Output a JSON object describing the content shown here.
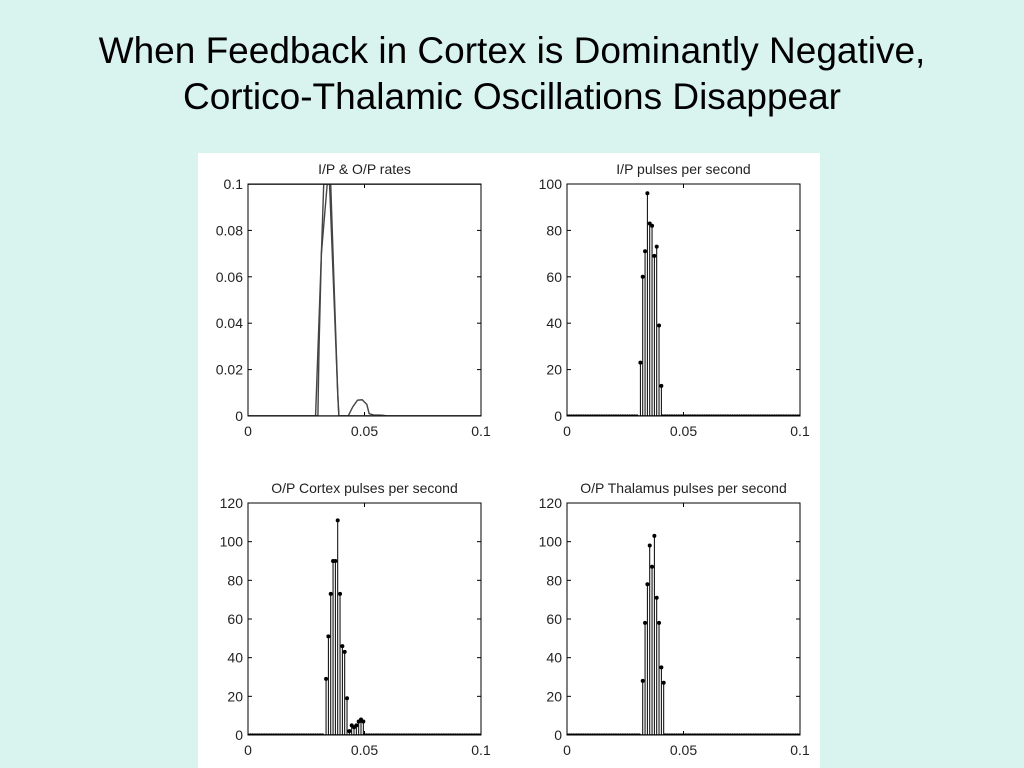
{
  "slide": {
    "title_line1": "When Feedback in Cortex is Dominantly Negative,",
    "title_line2": "Cortico-Thalamic Oscillations Disappear"
  },
  "chart_data": [
    {
      "type": "line",
      "title": "I/P & O/P rates",
      "xlabel": "",
      "ylabel": "",
      "xlim": [
        0,
        0.1
      ],
      "ylim": [
        0,
        0.1
      ],
      "xticks": [
        "0",
        "0.05",
        "0.1"
      ],
      "yticks": [
        "0",
        "0.02",
        "0.04",
        "0.06",
        "0.08",
        "0.1"
      ],
      "series": [
        {
          "x": [
            0.0,
            0.03,
            0.0305,
            0.0315,
            0.0325,
            0.0335,
            0.1
          ],
          "y": [
            0,
            0,
            0.03,
            0.07,
            0.1,
            0.1,
            0.1
          ]
        },
        {
          "x": [
            0.0,
            0.0345,
            0.0355,
            0.0365,
            0.0375,
            0.0385,
            0.039,
            0.1
          ],
          "y": [
            0.1,
            0.1,
            0.1,
            0.07,
            0.04,
            0.01,
            0,
            0
          ]
        },
        {
          "x": [
            0.0,
            0.0335,
            0.035,
            0.0385,
            0.039,
            0.1
          ],
          "y": [
            0.1,
            0.1,
            0.1,
            0.01,
            0,
            0
          ]
        },
        {
          "x": [
            0.0,
            0.029,
            0.0315,
            0.034,
            0.0355,
            0.1
          ],
          "y": [
            0,
            0,
            0.07,
            0.1,
            0.1,
            0.1
          ]
        },
        {
          "x": [
            0,
            0.043,
            0.045,
            0.047,
            0.049,
            0.051,
            0.052,
            0.054,
            0.056,
            0.058,
            0.06,
            0.1
          ],
          "y": [
            0,
            0,
            0.004,
            0.0068,
            0.007,
            0.005,
            0.001,
            0.0004,
            0.0004,
            0.0003,
            0,
            0
          ]
        }
      ]
    },
    {
      "type": "stem",
      "title": "I/P pulses per second",
      "xlabel": "",
      "ylabel": "",
      "xlim": [
        0,
        0.1
      ],
      "ylim": [
        0,
        100
      ],
      "xticks": [
        "0",
        "0.05",
        "0.1"
      ],
      "yticks": [
        "0",
        "20",
        "40",
        "60",
        "80",
        "100"
      ],
      "x": [
        0.0315,
        0.0325,
        0.0335,
        0.0345,
        0.0355,
        0.0365,
        0.0375,
        0.0385,
        0.0395,
        0.0405
      ],
      "values": [
        23,
        60,
        71,
        96,
        83,
        82,
        69,
        73,
        39,
        13
      ]
    },
    {
      "type": "stem",
      "title": "O/P Cortex pulses per second",
      "xlabel": "",
      "ylabel": "",
      "xlim": [
        0,
        0.1
      ],
      "ylim": [
        0,
        120
      ],
      "xticks": [
        "0",
        "0.05",
        "0.1"
      ],
      "yticks": [
        "0",
        "20",
        "40",
        "60",
        "80",
        "100",
        "120"
      ],
      "x": [
        0.0335,
        0.0345,
        0.0355,
        0.0365,
        0.0375,
        0.0385,
        0.0395,
        0.0405,
        0.0415,
        0.0425,
        0.0435,
        0.0445,
        0.0455,
        0.0465,
        0.0475,
        0.0485,
        0.0495
      ],
      "values": [
        29,
        51,
        73,
        90,
        90,
        111,
        73,
        46,
        43,
        19,
        2,
        5,
        4,
        5,
        7,
        8,
        7
      ]
    },
    {
      "type": "stem",
      "title": "O/P Thalamus pulses per second",
      "xlabel": "",
      "ylabel": "",
      "xlim": [
        0,
        0.1
      ],
      "ylim": [
        0,
        120
      ],
      "xticks": [
        "0",
        "0.05",
        "0.1"
      ],
      "yticks": [
        "0",
        "20",
        "40",
        "60",
        "80",
        "100",
        "120"
      ],
      "x": [
        0.0325,
        0.0335,
        0.0345,
        0.0355,
        0.0365,
        0.0375,
        0.0385,
        0.0395,
        0.0405,
        0.0415
      ],
      "values": [
        28,
        58,
        78,
        98,
        87,
        103,
        71,
        58,
        35,
        27
      ]
    }
  ]
}
